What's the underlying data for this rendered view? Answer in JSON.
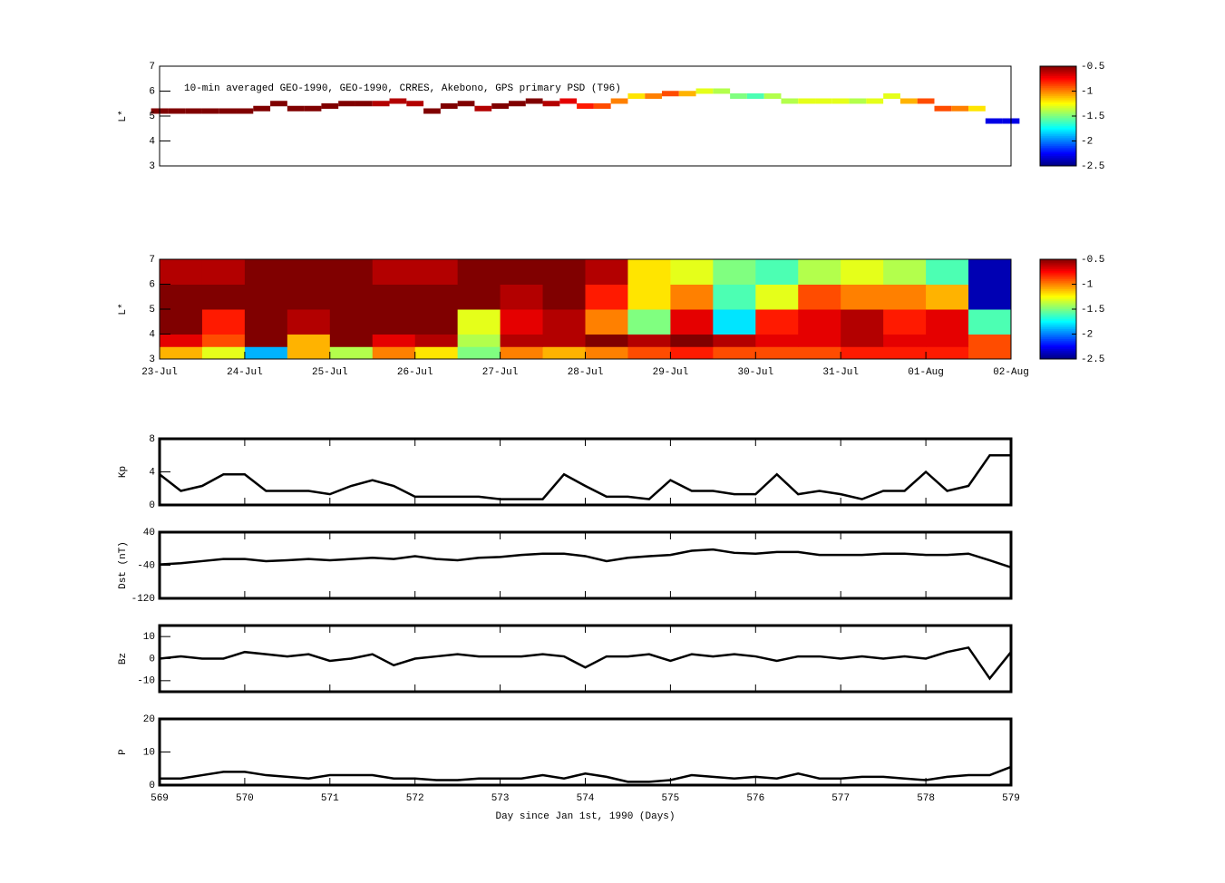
{
  "chart_data": [
    {
      "type": "scatter",
      "annotation": "10-min averaged GEO-1990, GEO-1990, CRRES, Akebono, GPS  primary PSD (T96)",
      "ylabel": "L*",
      "xlim": [
        569,
        579
      ],
      "ylim": [
        3,
        7
      ],
      "yticks": [
        3,
        4,
        5,
        6,
        7
      ],
      "clim": [
        -2.5,
        -0.5
      ],
      "cticks": [
        -0.5,
        -1,
        -1.5,
        -2,
        -2.5
      ],
      "x": [
        569,
        569.2,
        569.4,
        569.6,
        569.8,
        570,
        570.2,
        570.4,
        570.6,
        570.8,
        571,
        571.2,
        571.4,
        571.6,
        571.8,
        572,
        572.2,
        572.4,
        572.6,
        572.8,
        573,
        573.2,
        573.4,
        573.6,
        573.8,
        574,
        574.2,
        574.4,
        574.6,
        574.8,
        575,
        575.2,
        575.4,
        575.6,
        575.8,
        576,
        576.2,
        576.4,
        576.6,
        576.8,
        577,
        577.2,
        577.4,
        577.6,
        577.8,
        578,
        578.2,
        578.4,
        578.6,
        578.8,
        579
      ],
      "y": [
        5.2,
        5.2,
        5.2,
        5.2,
        5.2,
        5.2,
        5.3,
        5.5,
        5.3,
        5.3,
        5.4,
        5.5,
        5.5,
        5.5,
        5.6,
        5.5,
        5.2,
        5.4,
        5.5,
        5.3,
        5.4,
        5.5,
        5.6,
        5.5,
        5.6,
        5.4,
        5.4,
        5.6,
        5.8,
        5.8,
        5.9,
        5.9,
        6.0,
        6.0,
        5.8,
        5.8,
        5.8,
        5.6,
        5.6,
        5.6,
        5.6,
        5.6,
        5.6,
        5.8,
        5.6,
        5.6,
        5.3,
        5.3,
        5.3,
        4.8,
        4.8
      ],
      "values": [
        -0.5,
        -0.5,
        -0.5,
        -0.5,
        -0.5,
        -0.5,
        -0.5,
        -0.5,
        -0.5,
        -0.5,
        -0.5,
        -0.5,
        -0.5,
        -0.6,
        -0.6,
        -0.6,
        -0.5,
        -0.5,
        -0.5,
        -0.6,
        -0.5,
        -0.5,
        -0.5,
        -0.6,
        -0.7,
        -0.8,
        -0.9,
        -1.0,
        -1.2,
        -1.0,
        -0.9,
        -1.1,
        -1.3,
        -1.4,
        -1.5,
        -1.6,
        -1.4,
        -1.4,
        -1.3,
        -1.3,
        -1.3,
        -1.4,
        -1.3,
        -1.3,
        -1.1,
        -0.9,
        -0.9,
        -1.0,
        -1.2,
        -2.3,
        -2.3
      ]
    },
    {
      "type": "heatmap",
      "ylabel": "L*",
      "xlim": [
        569,
        579
      ],
      "ylim": [
        3,
        7
      ],
      "yticks": [
        3,
        4,
        5,
        6,
        7
      ],
      "xticks": [
        {
          "value": 569,
          "label": "23-Jul"
        },
        {
          "value": 570,
          "label": "24-Jul"
        },
        {
          "value": 571,
          "label": "25-Jul"
        },
        {
          "value": 572,
          "label": "26-Jul"
        },
        {
          "value": 573,
          "label": "27-Jul"
        },
        {
          "value": 574,
          "label": "28-Jul"
        },
        {
          "value": 575,
          "label": "29-Jul"
        },
        {
          "value": 576,
          "label": "30-Jul"
        },
        {
          "value": 577,
          "label": "31-Jul"
        },
        {
          "value": 578,
          "label": "01-Aug"
        },
        {
          "value": 579,
          "label": "02-Aug"
        }
      ],
      "clim": [
        -2.5,
        -0.5
      ],
      "cticks": [
        -0.5,
        -1,
        -1.5,
        -2,
        -2.5
      ],
      "x_bins": [
        569,
        569.5,
        570,
        570.5,
        571,
        571.5,
        572,
        572.5,
        573,
        573.5,
        574,
        574.5,
        575,
        575.5,
        576,
        576.5,
        577,
        577.5,
        578,
        578.5,
        579
      ],
      "y_bins": [
        3,
        3.5,
        4,
        5,
        6,
        7
      ],
      "z": [
        [
          -1.1,
          -1.3,
          -1.9,
          -1.1,
          -1.4,
          -1.0,
          -1.2,
          -1.5,
          -1.0,
          -1.1,
          -1.0,
          -0.9,
          -0.8,
          -0.9,
          -0.9,
          -0.9,
          -0.8,
          -0.8,
          -0.8,
          -0.9
        ],
        [
          -0.7,
          -0.9,
          -0.5,
          -1.1,
          -0.5,
          -0.7,
          -0.6,
          -1.4,
          -0.6,
          -0.6,
          -0.5,
          -0.6,
          -0.5,
          -0.6,
          -0.7,
          -0.7,
          -0.6,
          -0.7,
          -0.7,
          -0.9
        ],
        [
          -0.5,
          -0.8,
          -0.5,
          -0.6,
          -0.5,
          -0.5,
          -0.5,
          -1.3,
          -0.7,
          -0.6,
          -1.0,
          -1.5,
          -0.7,
          -1.8,
          -0.8,
          -0.7,
          -0.6,
          -0.8,
          -0.7,
          -1.6
        ],
        [
          -0.5,
          -0.5,
          -0.5,
          -0.5,
          -0.5,
          -0.5,
          -0.5,
          -0.5,
          -0.6,
          -0.5,
          -0.8,
          -1.2,
          -1.0,
          -1.6,
          -1.3,
          -0.9,
          -1.0,
          -1.0,
          -1.1,
          -2.4
        ],
        [
          -0.6,
          -0.6,
          -0.5,
          -0.5,
          -0.5,
          -0.6,
          -0.6,
          -0.5,
          -0.5,
          -0.5,
          -0.6,
          -1.2,
          -1.3,
          -1.5,
          -1.6,
          -1.4,
          -1.3,
          -1.4,
          -1.6,
          -2.4
        ]
      ]
    },
    {
      "type": "line",
      "ylabel": "Kp",
      "color": "#000000",
      "xlim": [
        569,
        579
      ],
      "ylim": [
        0,
        8
      ],
      "yticks": [
        0,
        4,
        8
      ],
      "x": [
        569,
        569.25,
        569.5,
        569.75,
        570,
        570.25,
        570.5,
        570.75,
        571,
        571.25,
        571.5,
        571.75,
        572,
        572.25,
        572.5,
        572.75,
        573,
        573.25,
        573.5,
        573.75,
        574,
        574.25,
        574.5,
        574.75,
        575,
        575.25,
        575.5,
        575.75,
        576,
        576.25,
        576.5,
        576.75,
        577,
        577.25,
        577.5,
        577.75,
        578,
        578.25,
        578.5,
        578.75,
        579
      ],
      "values": [
        3.7,
        1.7,
        2.3,
        3.7,
        3.7,
        1.7,
        1.7,
        1.7,
        1.3,
        2.3,
        3,
        2.3,
        1,
        1,
        1,
        1,
        0.7,
        0.7,
        0.7,
        3.7,
        2.3,
        1,
        1,
        0.7,
        3,
        1.7,
        1.7,
        1.3,
        1.3,
        3.7,
        1.3,
        1.7,
        1.3,
        0.7,
        1.7,
        1.7,
        4,
        1.7,
        2.3,
        6,
        6
      ]
    },
    {
      "type": "line",
      "ylabel": "Dst (nT)",
      "color": "#000000",
      "xlim": [
        569,
        579
      ],
      "ylim": [
        -120,
        40
      ],
      "yticks": [
        -120,
        -40,
        40
      ],
      "x": [
        569,
        569.25,
        569.5,
        569.75,
        570,
        570.25,
        570.5,
        570.75,
        571,
        571.25,
        571.5,
        571.75,
        572,
        572.25,
        572.5,
        572.75,
        573,
        573.25,
        573.5,
        573.75,
        574,
        574.25,
        574.5,
        574.75,
        575,
        575.25,
        575.5,
        575.75,
        576,
        576.25,
        576.5,
        576.75,
        577,
        577.25,
        577.5,
        577.75,
        578,
        578.25,
        578.5,
        578.75,
        579
      ],
      "values": [
        -38,
        -35,
        -30,
        -25,
        -25,
        -30,
        -28,
        -25,
        -28,
        -25,
        -22,
        -25,
        -18,
        -25,
        -28,
        -22,
        -20,
        -15,
        -12,
        -12,
        -18,
        -30,
        -22,
        -18,
        -15,
        -5,
        -2,
        -10,
        -12,
        -8,
        -8,
        -15,
        -15,
        -15,
        -12,
        -12,
        -15,
        -15,
        -12,
        -28,
        -45
      ]
    },
    {
      "type": "line",
      "ylabel": "Bz",
      "color": "#000000",
      "xlim": [
        569,
        579
      ],
      "ylim": [
        -15,
        15
      ],
      "yticks": [
        -10,
        0,
        10
      ],
      "x": [
        569,
        569.25,
        569.5,
        569.75,
        570,
        570.25,
        570.5,
        570.75,
        571,
        571.25,
        571.5,
        571.75,
        572,
        572.25,
        572.5,
        572.75,
        573,
        573.25,
        573.5,
        573.75,
        574,
        574.25,
        574.5,
        574.75,
        575,
        575.25,
        575.5,
        575.75,
        576,
        576.25,
        576.5,
        576.75,
        577,
        577.25,
        577.5,
        577.75,
        578,
        578.25,
        578.5,
        578.75,
        579
      ],
      "values": [
        0,
        1,
        0,
        0,
        3,
        2,
        1,
        2,
        -1,
        0,
        2,
        -3,
        0,
        1,
        2,
        1,
        1,
        1,
        2,
        1,
        -4,
        1,
        1,
        2,
        -1,
        2,
        1,
        2,
        1,
        -1,
        1,
        1,
        0,
        1,
        0,
        1,
        0,
        3,
        5,
        -9,
        3
      ]
    },
    {
      "type": "line",
      "ylabel": "P",
      "color": "#000000",
      "xlabel": "Day since Jan 1st, 1990 (Days)",
      "xlim": [
        569,
        579
      ],
      "ylim": [
        0,
        20
      ],
      "yticks": [
        0,
        10,
        20
      ],
      "xticks": [
        569,
        570,
        571,
        572,
        573,
        574,
        575,
        576,
        577,
        578,
        579
      ],
      "x": [
        569,
        569.25,
        569.5,
        569.75,
        570,
        570.25,
        570.5,
        570.75,
        571,
        571.25,
        571.5,
        571.75,
        572,
        572.25,
        572.5,
        572.75,
        573,
        573.25,
        573.5,
        573.75,
        574,
        574.25,
        574.5,
        574.75,
        575,
        575.25,
        575.5,
        575.75,
        576,
        576.25,
        576.5,
        576.75,
        577,
        577.25,
        577.5,
        577.75,
        578,
        578.25,
        578.5,
        578.75,
        579
      ],
      "values": [
        2,
        2,
        3,
        4,
        4,
        3,
        2.5,
        2,
        3,
        3,
        3,
        2,
        2,
        1.5,
        1.5,
        2,
        2,
        2,
        3,
        2,
        3.5,
        2.5,
        1,
        1,
        1.5,
        3,
        2.5,
        2,
        2.5,
        2,
        3.5,
        2,
        2,
        2.5,
        2.5,
        2,
        1.5,
        2.5,
        3,
        3,
        5.5
      ]
    }
  ]
}
